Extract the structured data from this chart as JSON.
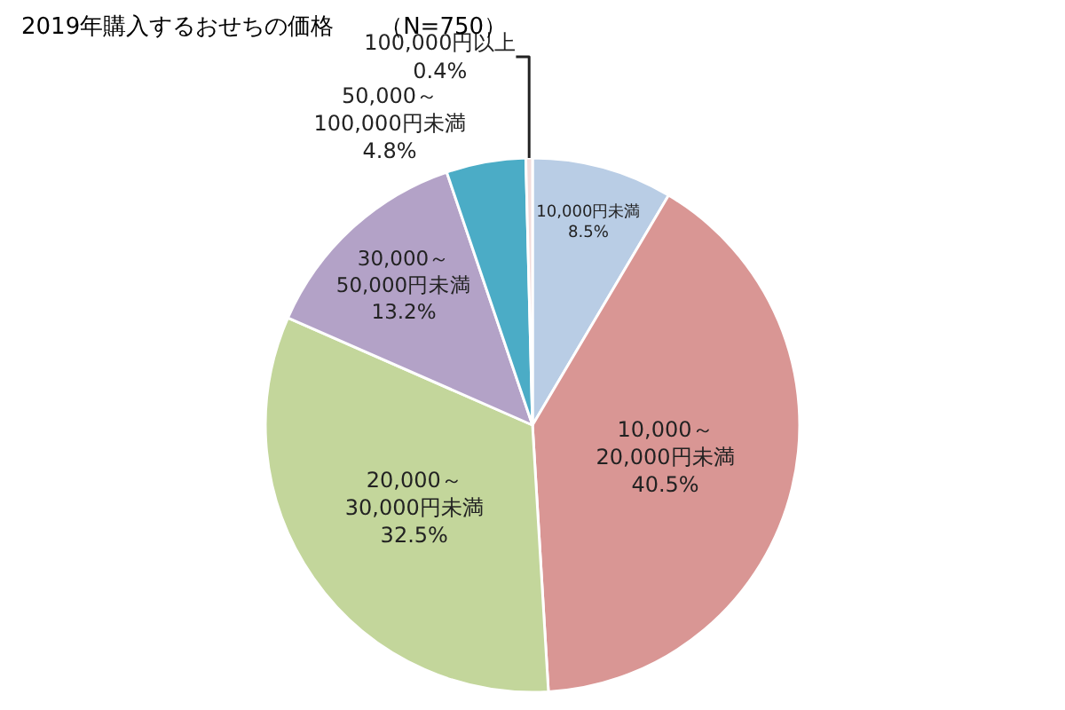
{
  "chart_data": {
    "type": "pie",
    "title": "2019年購入するおせちの価格　　（N=750）",
    "categories": [
      "10,000円未満",
      "10,000～20,000円未満",
      "20,000～30,000円未満",
      "30,000～50,000円未満",
      "50,000～100,000円未満",
      "100,000円以上"
    ],
    "values": [
      8.5,
      40.5,
      32.5,
      13.2,
      4.8,
      0.4
    ],
    "value_labels": [
      "8.5%",
      "40.5%",
      "32.5%",
      "13.2%",
      "4.8%",
      "0.4%"
    ],
    "colors": [
      "#b9cde5",
      "#d99694",
      "#c3d69b",
      "#b3a2c7",
      "#4bacc6",
      "#f2dcdb"
    ],
    "legend": false
  }
}
